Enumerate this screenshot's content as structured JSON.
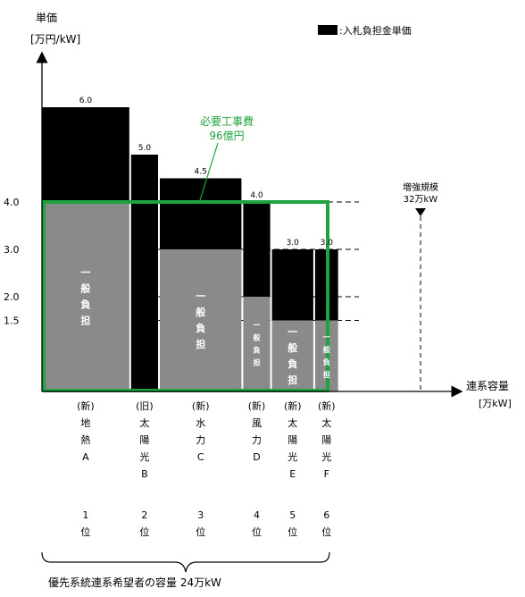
{
  "chart_data": {
    "type": "bar",
    "title": "",
    "ylabel": "単価",
    "yunit": "[万円/kW]",
    "xlabel": "連系容量",
    "xunit": "[万kW]",
    "legend": {
      "label": ":入札負担金単価",
      "color": "#000000",
      "position": "top-right"
    },
    "y_ticks": [
      {
        "value": 4.0,
        "label": "4.0"
      },
      {
        "value": 3.0,
        "label": "3.0"
      },
      {
        "value": 2.0,
        "label": "2.0"
      },
      {
        "value": 1.5,
        "label": "1.5"
      }
    ],
    "categories": [
      {
        "label_chars": [
          "(新)",
          "地",
          "熱",
          "A"
        ],
        "rank_chars": [
          "1",
          "位"
        ],
        "capacity_share": 0.31,
        "total": 6.0,
        "general_burden": 4.0,
        "value_label": "6.0",
        "general_label_chars": [
          "一",
          "般",
          "負",
          "担"
        ]
      },
      {
        "label_chars": [
          "(旧)",
          "太",
          "陽",
          "光",
          "B"
        ],
        "rank_chars": [
          "2",
          "位"
        ],
        "capacity_share": 0.1,
        "total": 5.0,
        "general_burden": 0.0,
        "value_label": "5.0",
        "general_label_chars": []
      },
      {
        "label_chars": [
          "(新)",
          "水",
          "力",
          "C"
        ],
        "rank_chars": [
          "3",
          "位"
        ],
        "capacity_share": 0.29,
        "total": 4.5,
        "general_burden": 3.0,
        "value_label": "4.5",
        "general_label_chars": [
          "一",
          "般",
          "負",
          "担"
        ]
      },
      {
        "label_chars": [
          "(新)",
          "風",
          "力",
          "D"
        ],
        "rank_chars": [
          "4",
          "位"
        ],
        "capacity_share": 0.1,
        "total": 4.0,
        "general_burden": 2.0,
        "value_label": "4.0",
        "general_label_chars": [
          "一",
          "般",
          "負",
          "担"
        ]
      },
      {
        "label_chars": [
          "(新)",
          "太",
          "陽",
          "光",
          "E"
        ],
        "rank_chars": [
          "5",
          "位"
        ],
        "capacity_share": 0.15,
        "total": 3.0,
        "general_burden": 1.5,
        "value_label": "3.0",
        "general_label_chars": [
          "一",
          "般",
          "負",
          "担"
        ]
      },
      {
        "label_chars": [
          "(新)",
          "太",
          "陽",
          "光",
          "F"
        ],
        "rank_chars": [
          "6",
          "位"
        ],
        "capacity_share": 0.08,
        "total": 3.0,
        "general_burden": 1.5,
        "value_label": "3.0",
        "general_label_chars": [
          "一",
          "般",
          "負",
          "担"
        ]
      }
    ],
    "colors": {
      "bid": "#000000",
      "general": "#8a8a8a",
      "highlight": "#1fa33f"
    },
    "annotations": {
      "required_cost_line1": "必要工事費",
      "required_cost_line2": "96億円",
      "expansion_line1": "増強規模",
      "expansion_line2": "32万kW",
      "priority_capacity": "優先系統連系希望者の容量 24万kW"
    }
  }
}
